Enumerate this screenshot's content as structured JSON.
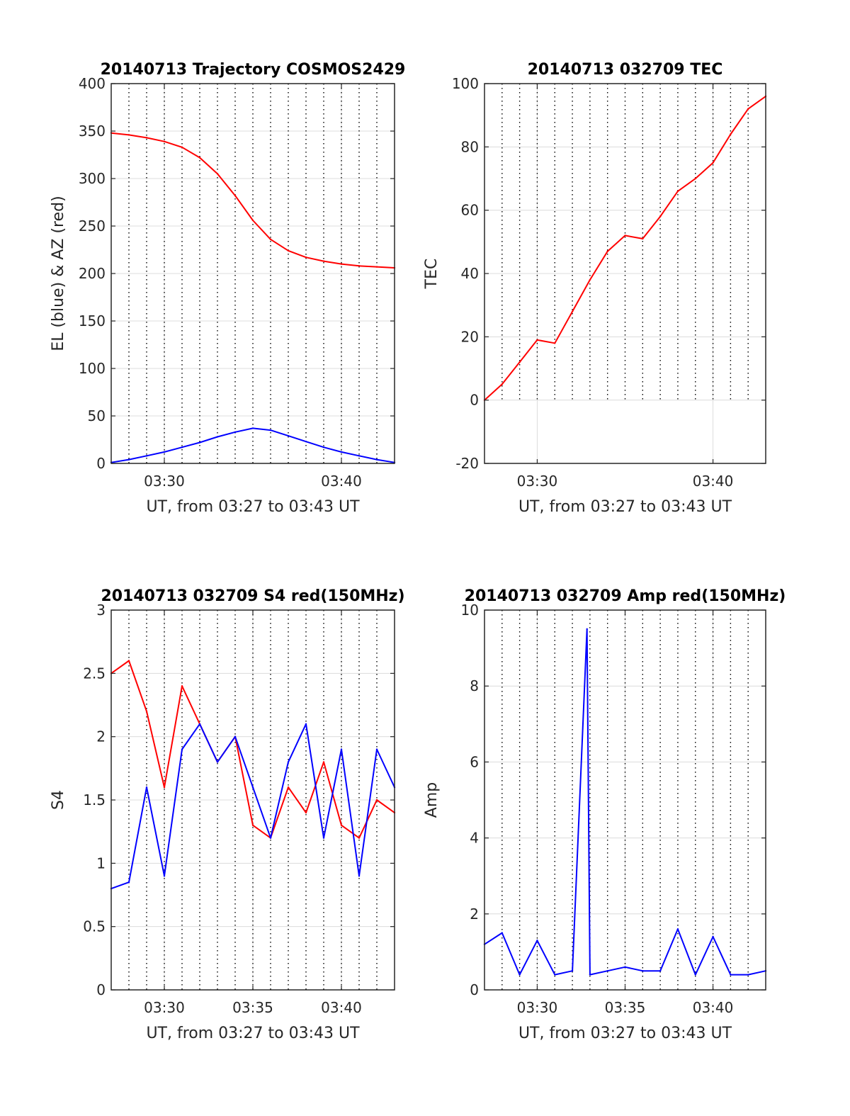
{
  "figure": {
    "background": "#ffffff",
    "axis_color": "#262626",
    "grid_color": "#262626",
    "colors": {
      "red": "#ff0000",
      "blue": "#0000ff"
    }
  },
  "chart_data": [
    {
      "id": "trajectory",
      "type": "line",
      "title": "20140713 Trajectory COSMOS2429",
      "xlabel": "UT, from 03:27 to 03:43 UT",
      "ylabel": "EL (blue) & AZ (red)",
      "xlim": [
        "03:27",
        "03:43"
      ],
      "ylim": [
        0,
        400
      ],
      "x_ticks": [
        "03:30",
        "03:40"
      ],
      "y_ticks": [
        0,
        50,
        100,
        150,
        200,
        250,
        300,
        350,
        400
      ],
      "grid": "dotted vertical lines every minute, solid horizontal major grid",
      "series": [
        {
          "color": "#ff0000",
          "x": [
            "03:27",
            "03:28",
            "03:29",
            "03:30",
            "03:31",
            "03:32",
            "03:33",
            "03:34",
            "03:35",
            "03:36",
            "03:37",
            "03:38",
            "03:39",
            "03:40",
            "03:41",
            "03:42",
            "03:43"
          ],
          "y": [
            348,
            346,
            343,
            339,
            333,
            322,
            305,
            282,
            256,
            236,
            224,
            217,
            213,
            210,
            208,
            207,
            206
          ]
        },
        {
          "color": "#0000ff",
          "x": [
            "03:27",
            "03:28",
            "03:29",
            "03:30",
            "03:31",
            "03:32",
            "03:33",
            "03:34",
            "03:35",
            "03:36",
            "03:37",
            "03:38",
            "03:39",
            "03:40",
            "03:41",
            "03:42",
            "03:43"
          ],
          "y": [
            1,
            4,
            8,
            12,
            17,
            22,
            28,
            33,
            37,
            35,
            29,
            23,
            17,
            12,
            8,
            4,
            1
          ]
        }
      ]
    },
    {
      "id": "tec",
      "type": "line",
      "title": "20140713 032709 TEC",
      "xlabel": "UT, from 03:27 to 03:43 UT",
      "ylabel": "TEC",
      "xlim": [
        "03:27",
        "03:43"
      ],
      "ylim": [
        -20,
        100
      ],
      "x_ticks": [
        "03:30",
        "03:40"
      ],
      "y_ticks": [
        -20,
        0,
        20,
        40,
        60,
        80,
        100
      ],
      "grid": "dotted vertical lines every minute above 0, solid horizontal major grid",
      "series": [
        {
          "color": "#ff0000",
          "x": [
            "03:27",
            "03:28",
            "03:29",
            "03:30",
            "03:31",
            "03:32",
            "03:33",
            "03:34",
            "03:35",
            "03:36",
            "03:37",
            "03:38",
            "03:39",
            "03:40",
            "03:41",
            "03:42",
            "03:43"
          ],
          "y": [
            0,
            5,
            12,
            19,
            18,
            28,
            38,
            47,
            52,
            51,
            58,
            66,
            70,
            75,
            84,
            92,
            96
          ]
        }
      ]
    },
    {
      "id": "s4",
      "type": "line",
      "title": "20140713 032709 S4 red(150MHz)",
      "xlabel": "UT, from 03:27 to 03:43 UT",
      "ylabel": "S4",
      "xlim": [
        "03:27",
        "03:43"
      ],
      "ylim": [
        0,
        3
      ],
      "x_ticks": [
        "03:30",
        "03:35",
        "03:40"
      ],
      "y_ticks": [
        0,
        0.5,
        1,
        1.5,
        2,
        2.5,
        3
      ],
      "grid": "dotted vertical lines every minute, solid horizontal major grid",
      "series": [
        {
          "color": "#ff0000",
          "x": [
            "03:27",
            "03:28",
            "03:29",
            "03:30",
            "03:31",
            "03:32",
            "03:33",
            "03:34",
            "03:35",
            "03:36",
            "03:37",
            "03:38",
            "03:39",
            "03:40",
            "03:41",
            "03:42",
            "03:43"
          ],
          "y": [
            2.5,
            2.6,
            2.2,
            1.6,
            2.4,
            2.1,
            1.8,
            2.0,
            1.3,
            1.2,
            1.6,
            1.4,
            1.8,
            1.3,
            1.2,
            1.5,
            1.4
          ]
        },
        {
          "color": "#0000ff",
          "x": [
            "03:27",
            "03:28",
            "03:29",
            "03:30",
            "03:31",
            "03:32",
            "03:33",
            "03:34",
            "03:35",
            "03:36",
            "03:37",
            "03:38",
            "03:39",
            "03:40",
            "03:41",
            "03:42",
            "03:43"
          ],
          "y": [
            0.8,
            0.85,
            1.6,
            0.9,
            1.9,
            2.1,
            1.8,
            2.0,
            1.6,
            1.2,
            1.8,
            2.1,
            1.2,
            1.9,
            0.9,
            1.9,
            1.6
          ]
        }
      ]
    },
    {
      "id": "amp",
      "type": "line",
      "title": "20140713 032709 Amp red(150MHz)",
      "xlabel": "UT, from 03:27 to 03:43 UT",
      "ylabel": "Amp",
      "xlim": [
        "03:27",
        "03:43"
      ],
      "ylim": [
        0,
        10
      ],
      "x_ticks": [
        "03:30",
        "03:35",
        "03:40"
      ],
      "y_ticks": [
        0,
        2,
        4,
        6,
        8,
        10
      ],
      "grid": "dotted vertical lines every minute, solid horizontal major grid",
      "series": [
        {
          "color": "#0000ff",
          "x": [
            "03:27",
            "03:28",
            "03:29",
            "03:30",
            "03:31",
            "03:32",
            "03:32:50",
            "03:33",
            "03:34",
            "03:35",
            "03:36",
            "03:37",
            "03:38",
            "03:39",
            "03:40",
            "03:41",
            "03:42",
            "03:43"
          ],
          "y": [
            1.2,
            1.5,
            0.4,
            1.3,
            0.4,
            0.5,
            9.5,
            0.4,
            0.5,
            0.6,
            0.5,
            0.5,
            1.6,
            0.4,
            1.4,
            0.4,
            0.4,
            0.5
          ]
        }
      ]
    }
  ]
}
